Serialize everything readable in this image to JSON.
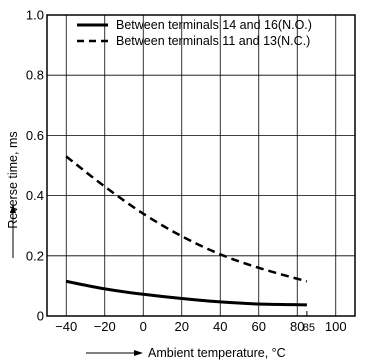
{
  "chart_data": {
    "type": "line",
    "title": "",
    "xlabel": "Ambient temperature, °C",
    "ylabel": "Reverse time, ms",
    "xlim": [
      -50,
      110
    ],
    "ylim": [
      0,
      1.0
    ],
    "x_ticks": [
      -40,
      -20,
      0,
      20,
      40,
      60,
      80,
      100
    ],
    "x_tick_labels": [
      "−40",
      "−20",
      "0",
      "20",
      "40",
      "60",
      "80",
      "100"
    ],
    "extra_x_tick": {
      "value": 85,
      "label": "85"
    },
    "y_ticks": [
      0,
      0.2,
      0.4,
      0.6,
      0.8,
      1.0
    ],
    "y_tick_labels": [
      "0",
      "0.2",
      "0.4",
      "0.6",
      "0.8",
      "1.0"
    ],
    "grid": true,
    "legend_position": "top",
    "series": [
      {
        "name": "Between terminals 14 and 16(N.O.)",
        "style": "solid",
        "x": [
          -40,
          -20,
          0,
          20,
          40,
          60,
          85
        ],
        "y": [
          0.115,
          0.09,
          0.072,
          0.058,
          0.047,
          0.04,
          0.037
        ]
      },
      {
        "name": "Between terminals 11 and 13(N.C.)",
        "style": "dashed",
        "x": [
          -40,
          -20,
          0,
          20,
          40,
          60,
          85
        ],
        "y": [
          0.53,
          0.43,
          0.34,
          0.265,
          0.205,
          0.16,
          0.115
        ]
      }
    ]
  }
}
